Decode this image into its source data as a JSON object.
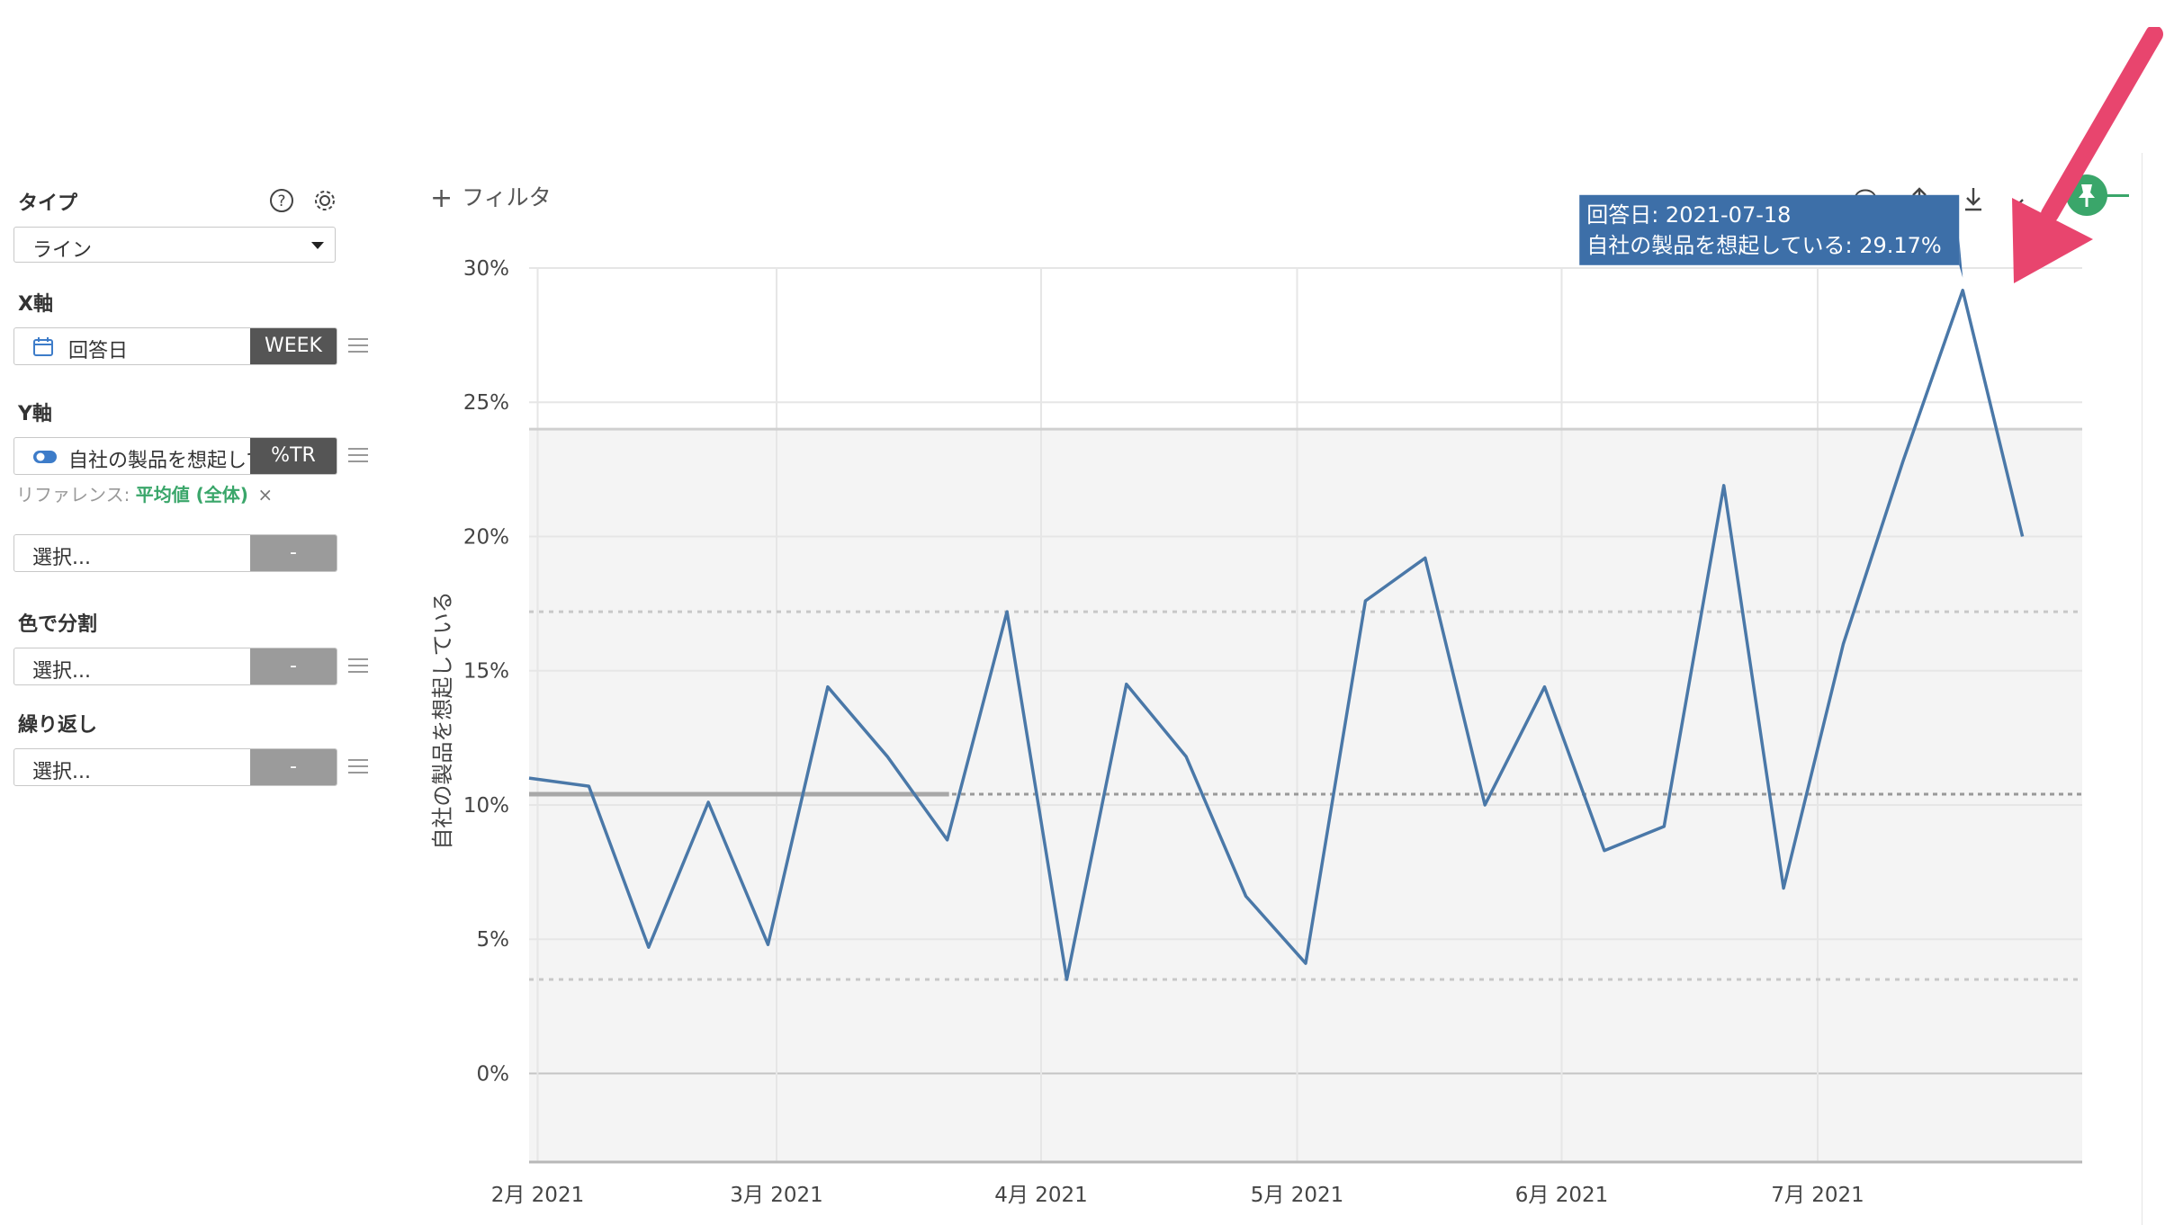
{
  "sidebar": {
    "type_label": "タイプ",
    "type_value": "ライン",
    "x_label": "X軸",
    "x_field": "回答日",
    "x_badge": "WEEK",
    "y_label": "Y軸",
    "y_field": "自社の製品を想起している",
    "y_badge": "%TR",
    "reference_prefix": "リファレンス:",
    "reference_value": "平均値 (全体)",
    "reference_remove": "×",
    "y2_placeholder": "選択...",
    "y2_badge": "-",
    "color_label": "色で分割",
    "color_placeholder": "選択...",
    "color_badge": "-",
    "repeat_label": "繰り返し",
    "repeat_placeholder": "選択...",
    "repeat_badge": "-"
  },
  "toolbar": {
    "filter_label": "フィルタ",
    "icons": [
      "comment-icon",
      "upload-icon",
      "download-icon",
      "expand-icon",
      "pin-icon"
    ]
  },
  "tooltip": {
    "line1": "回答日: 2021-07-18",
    "line2": "自社の製品を想起している: 29.17%"
  },
  "colors": {
    "line": "#4a78a8",
    "tooltip_bg": "#3d6fa8",
    "accent_green": "#3aa66a",
    "arrow": "#e8456e"
  },
  "chart_data": {
    "type": "line",
    "ylabel": "自社の製品を想起している",
    "xlabel": "",
    "ylim": [
      -3.3,
      30
    ],
    "xlim": [
      "2021-01-31",
      "2021-08-01"
    ],
    "yticks": [
      "0%",
      "5%",
      "10%",
      "15%",
      "20%",
      "25%",
      "30%"
    ],
    "ytick_values": [
      0,
      5,
      10,
      15,
      20,
      25,
      30
    ],
    "xticks": [
      {
        "label": "2月 2021",
        "date": "2021-02-01"
      },
      {
        "label": "3月 2021",
        "date": "2021-03-01"
      },
      {
        "label": "4月 2021",
        "date": "2021-04-01"
      },
      {
        "label": "5月 2021",
        "date": "2021-05-01"
      },
      {
        "label": "6月 2021",
        "date": "2021-06-01"
      },
      {
        "label": "7月 2021",
        "date": "2021-07-01"
      }
    ],
    "grid": true,
    "x": [
      "2021-01-31",
      "2021-02-07",
      "2021-02-14",
      "2021-02-21",
      "2021-02-28",
      "2021-03-07",
      "2021-03-14",
      "2021-03-21",
      "2021-03-28",
      "2021-04-04",
      "2021-04-11",
      "2021-04-18",
      "2021-04-25",
      "2021-05-02",
      "2021-05-09",
      "2021-05-16",
      "2021-05-23",
      "2021-05-30",
      "2021-06-06",
      "2021-06-13",
      "2021-06-20",
      "2021-06-27",
      "2021-07-04",
      "2021-07-11",
      "2021-07-18",
      "2021-07-25"
    ],
    "series": [
      {
        "name": "自社の製品を想起している",
        "values": [
          11.0,
          10.7,
          4.7,
          10.1,
          4.8,
          14.4,
          11.8,
          8.7,
          17.2,
          3.5,
          14.5,
          11.8,
          6.6,
          4.1,
          17.6,
          19.2,
          10.0,
          14.4,
          8.3,
          9.2,
          21.9,
          6.9,
          16.0,
          22.8,
          29.17,
          20.0
        ]
      }
    ],
    "reference": {
      "label": "平均値 (全体)",
      "mean": 10.4,
      "band_low": -3.3,
      "band_high": 24.0,
      "inner_low": 3.5,
      "inner_high": 17.2
    }
  }
}
